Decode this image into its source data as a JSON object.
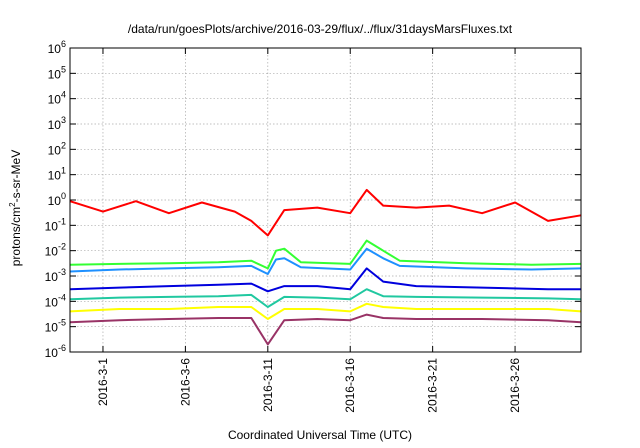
{
  "chart_data": {
    "type": "line",
    "title": "/data/run/goesPlots/archive/2016-03-29/flux/../flux/31daysMarsFluxes.txt",
    "xlabel": "Coordinated Universal Time (UTC)",
    "ylabel": "protons/cm2-s-sr-MeV",
    "ylabel_parts": {
      "base": "protons/cm",
      "sup": "2",
      "rest": "-s-sr-MeV"
    },
    "yscale": "log",
    "ylim": [
      1e-06,
      1000000.0
    ],
    "y_ticks": [
      {
        "base": "10",
        "exp": "-6",
        "v": -6
      },
      {
        "base": "10",
        "exp": "-5",
        "v": -5
      },
      {
        "base": "10",
        "exp": "-4",
        "v": -4
      },
      {
        "base": "10",
        "exp": "-3",
        "v": -3
      },
      {
        "base": "10",
        "exp": "-2",
        "v": -2
      },
      {
        "base": "10",
        "exp": "-1",
        "v": -1
      },
      {
        "base": "10",
        "exp": "0",
        "v": 0
      },
      {
        "base": "10",
        "exp": "1",
        "v": 1
      },
      {
        "base": "10",
        "exp": "2",
        "v": 2
      },
      {
        "base": "10",
        "exp": "3",
        "v": 3
      },
      {
        "base": "10",
        "exp": "4",
        "v": 4
      },
      {
        "base": "10",
        "exp": "5",
        "v": 5
      },
      {
        "base": "10",
        "exp": "6",
        "v": 6
      }
    ],
    "xlim": [
      "2016-02-28",
      "2016-03-30"
    ],
    "x_ticks": [
      "2016-3-1",
      "2016-3-6",
      "2016-3-11",
      "2016-3-16",
      "2016-3-21",
      "2016-3-26"
    ],
    "grid": true,
    "series": [
      {
        "color": "#ff0000",
        "x": [
          "2016-02-28",
          "2016-03-01",
          "2016-03-03",
          "2016-03-05",
          "2016-03-07",
          "2016-03-09",
          "2016-03-10",
          "2016-03-11",
          "2016-03-12",
          "2016-03-14",
          "2016-03-16",
          "2016-03-17",
          "2016-03-18",
          "2016-03-20",
          "2016-03-22",
          "2016-03-24",
          "2016-03-26",
          "2016-03-28",
          "2016-03-30"
        ],
        "y": [
          0.9,
          0.35,
          0.9,
          0.3,
          0.8,
          0.35,
          0.15,
          0.04,
          0.4,
          0.5,
          0.3,
          2.5,
          0.6,
          0.5,
          0.6,
          0.3,
          0.8,
          0.15,
          0.25
        ]
      },
      {
        "color": "#33ff33",
        "x": [
          "2016-02-28",
          "2016-03-02",
          "2016-03-05",
          "2016-03-08",
          "2016-03-10",
          "2016-03-11",
          "2016-03-11.5",
          "2016-03-12",
          "2016-03-13",
          "2016-03-16",
          "2016-03-17",
          "2016-03-18",
          "2016-03-19",
          "2016-03-23",
          "2016-03-27",
          "2016-03-30"
        ],
        "y": [
          0.0028,
          0.003,
          0.0032,
          0.0035,
          0.004,
          0.002,
          0.01,
          0.012,
          0.0035,
          0.003,
          0.025,
          0.01,
          0.004,
          0.0032,
          0.0028,
          0.003
        ]
      },
      {
        "color": "#1e90ff",
        "x": [
          "2016-02-28",
          "2016-03-02",
          "2016-03-05",
          "2016-03-08",
          "2016-03-10",
          "2016-03-11",
          "2016-03-11.5",
          "2016-03-12",
          "2016-03-13",
          "2016-03-16",
          "2016-03-17",
          "2016-03-18",
          "2016-03-19",
          "2016-03-23",
          "2016-03-27",
          "2016-03-30"
        ],
        "y": [
          0.0015,
          0.0018,
          0.002,
          0.0022,
          0.0025,
          0.0012,
          0.0045,
          0.005,
          0.0022,
          0.0018,
          0.012,
          0.005,
          0.0025,
          0.002,
          0.0018,
          0.002
        ]
      },
      {
        "color": "#0000dd",
        "x": [
          "2016-02-28",
          "2016-03-02",
          "2016-03-05",
          "2016-03-08",
          "2016-03-10",
          "2016-03-11",
          "2016-03-12",
          "2016-03-14",
          "2016-03-16",
          "2016-03-17",
          "2016-03-18",
          "2016-03-20",
          "2016-03-24",
          "2016-03-28",
          "2016-03-30"
        ],
        "y": [
          0.0003,
          0.00035,
          0.0004,
          0.00045,
          0.0005,
          0.00025,
          0.0004,
          0.0004,
          0.0003,
          0.002,
          0.0006,
          0.0004,
          0.00035,
          0.0003,
          0.0003
        ]
      },
      {
        "color": "#20c8a0",
        "x": [
          "2016-02-28",
          "2016-03-02",
          "2016-03-05",
          "2016-03-08",
          "2016-03-10",
          "2016-03-11",
          "2016-03-12",
          "2016-03-14",
          "2016-03-16",
          "2016-03-17",
          "2016-03-18",
          "2016-03-20",
          "2016-03-24",
          "2016-03-28",
          "2016-03-30"
        ],
        "y": [
          0.00012,
          0.00014,
          0.00015,
          0.00016,
          0.00018,
          6e-05,
          0.00015,
          0.00014,
          0.00012,
          0.0003,
          0.00016,
          0.00015,
          0.00014,
          0.00013,
          0.00012
        ]
      },
      {
        "color": "#ffff00",
        "x": [
          "2016-02-28",
          "2016-03-02",
          "2016-03-05",
          "2016-03-08",
          "2016-03-10",
          "2016-03-11",
          "2016-03-12",
          "2016-03-14",
          "2016-03-16",
          "2016-03-17",
          "2016-03-18",
          "2016-03-20",
          "2016-03-24",
          "2016-03-28",
          "2016-03-30"
        ],
        "y": [
          4e-05,
          5e-05,
          5e-05,
          6e-05,
          6e-05,
          2e-05,
          5e-05,
          5e-05,
          4e-05,
          8e-05,
          6e-05,
          5e-05,
          5e-05,
          5e-05,
          4e-05
        ]
      },
      {
        "color": "#993366",
        "x": [
          "2016-02-28",
          "2016-03-02",
          "2016-03-05",
          "2016-03-08",
          "2016-03-10",
          "2016-03-11",
          "2016-03-12",
          "2016-03-14",
          "2016-03-16",
          "2016-03-17",
          "2016-03-18",
          "2016-03-20",
          "2016-03-24",
          "2016-03-28",
          "2016-03-30"
        ],
        "y": [
          1.5e-05,
          1.8e-05,
          2e-05,
          2.2e-05,
          2.2e-05,
          2e-06,
          1.8e-05,
          2e-05,
          1.8e-05,
          3e-05,
          2.2e-05,
          2e-05,
          2e-05,
          1.8e-05,
          1.5e-05
        ]
      }
    ]
  }
}
